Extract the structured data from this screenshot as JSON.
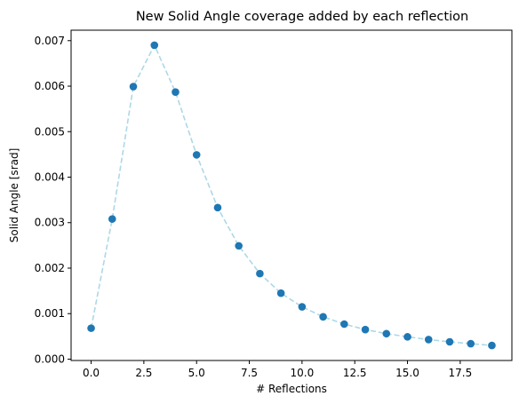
{
  "chart_data": {
    "type": "scatter",
    "title": "New Solid Angle coverage added by each reflection",
    "xlabel": "# Reflections",
    "ylabel": "Solid Angle [srad]",
    "x": [
      0,
      1,
      2,
      3,
      4,
      5,
      6,
      7,
      8,
      9,
      10,
      11,
      12,
      13,
      14,
      15,
      16,
      17,
      18,
      19
    ],
    "values": [
      0.00068,
      0.00308,
      0.00599,
      0.0069,
      0.00587,
      0.00449,
      0.00333,
      0.00249,
      0.00188,
      0.00145,
      0.00115,
      0.00093,
      0.00077,
      0.00065,
      0.00056,
      0.00049,
      0.00043,
      0.00038,
      0.00034,
      0.0003
    ],
    "xlim": [
      -0.95,
      19.95
    ],
    "ylim": [
      -3e-05,
      0.00723
    ],
    "xticks": [
      0.0,
      2.5,
      5.0,
      7.5,
      10.0,
      12.5,
      15.0,
      17.5
    ],
    "xtick_labels": [
      "0.0",
      "2.5",
      "5.0",
      "7.5",
      "10.0",
      "12.5",
      "15.0",
      "17.5"
    ],
    "yticks": [
      0.0,
      0.001,
      0.002,
      0.003,
      0.004,
      0.005,
      0.006,
      0.007
    ],
    "ytick_labels": [
      "0.000",
      "0.001",
      "0.002",
      "0.003",
      "0.004",
      "0.005",
      "0.006",
      "0.007"
    ],
    "grid": false,
    "legend": false,
    "marker_color": "#1f77b4",
    "line_color": "#add8e6",
    "line_style": "dashed"
  }
}
